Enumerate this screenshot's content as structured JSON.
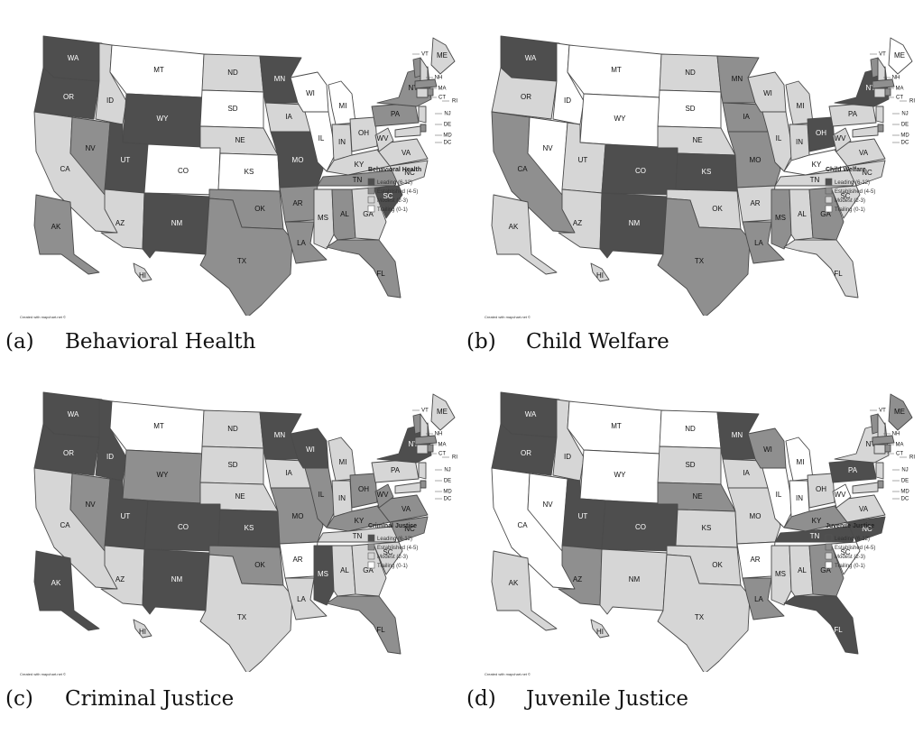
{
  "colors": {
    "leading": "#4e4e4e",
    "established": "#8f8f8f",
    "modest": "#d6d6d6",
    "trailing": "#ffffff"
  },
  "legend_categories": [
    {
      "key": "leading",
      "label": "Leading (6-12)"
    },
    {
      "key": "established",
      "label": "Established (4-5)"
    },
    {
      "key": "modest",
      "label": "Modest (2-3)"
    },
    {
      "key": "trailing",
      "label": "Trailing (0-1)"
    }
  ],
  "credit": "Created with mapchart.net ©",
  "panels": [
    {
      "caption_label": "(a)",
      "caption_title": "Behavioral Health",
      "legend_title": "Behavioral Health",
      "states": {
        "WA": "leading",
        "OR": "leading",
        "CA": "modest",
        "NV": "established",
        "ID": "modest",
        "MT": "trailing",
        "WY": "leading",
        "UT": "leading",
        "AZ": "modest",
        "CO": "trailing",
        "NM": "leading",
        "ND": "modest",
        "SD": "trailing",
        "NE": "modest",
        "KS": "trailing",
        "OK": "established",
        "TX": "established",
        "MN": "leading",
        "IA": "modest",
        "MO": "leading",
        "AR": "established",
        "LA": "established",
        "WI": "trailing",
        "IL": "trailing",
        "MI": "trailing",
        "IN": "modest",
        "OH": "modest",
        "KY": "modest",
        "TN": "established",
        "MS": "modest",
        "AL": "established",
        "GA": "modest",
        "FL": "established",
        "SC": "leading",
        "NC": "modest",
        "VA": "modest",
        "WV": "modest",
        "PA": "established",
        "NY": "established",
        "ME": "modest",
        "AK": "established",
        "HI": "modest"
      }
    },
    {
      "caption_label": "(b)",
      "caption_title": "Child Welfare",
      "legend_title": "Child Welfare",
      "states": {
        "WA": "leading",
        "OR": "modest",
        "CA": "established",
        "NV": "trailing",
        "ID": "trailing",
        "MT": "trailing",
        "WY": "trailing",
        "UT": "modest",
        "AZ": "modest",
        "CO": "leading",
        "NM": "leading",
        "ND": "modest",
        "SD": "trailing",
        "NE": "modest",
        "KS": "leading",
        "OK": "modest",
        "TX": "established",
        "MN": "established",
        "IA": "established",
        "MO": "established",
        "AR": "modest",
        "LA": "established",
        "WI": "modest",
        "IL": "modest",
        "MI": "modest",
        "IN": "modest",
        "OH": "leading",
        "KY": "trailing",
        "TN": "modest",
        "MS": "established",
        "AL": "modest",
        "GA": "established",
        "FL": "modest",
        "SC": "modest",
        "NC": "modest",
        "VA": "modest",
        "WV": "modest",
        "PA": "modest",
        "NY": "leading",
        "ME": "trailing",
        "AK": "modest",
        "HI": "modest"
      }
    },
    {
      "caption_label": "(c)",
      "caption_title": "Criminal Justice",
      "legend_title": "Criminal Justice",
      "states": {
        "WA": "leading",
        "OR": "leading",
        "CA": "modest",
        "NV": "established",
        "ID": "leading",
        "MT": "trailing",
        "WY": "established",
        "UT": "leading",
        "AZ": "modest",
        "CO": "leading",
        "NM": "leading",
        "ND": "modest",
        "SD": "modest",
        "NE": "modest",
        "KS": "leading",
        "OK": "established",
        "TX": "modest",
        "MN": "leading",
        "IA": "modest",
        "MO": "established",
        "AR": "trailing",
        "LA": "modest",
        "WI": "leading",
        "IL": "established",
        "MI": "modest",
        "IN": "modest",
        "OH": "established",
        "KY": "established",
        "TN": "modest",
        "MS": "leading",
        "AL": "modest",
        "GA": "modest",
        "FL": "established",
        "SC": "modest",
        "NC": "established",
        "VA": "established",
        "WV": "established",
        "PA": "modest",
        "NY": "leading",
        "ME": "modest",
        "AK": "leading",
        "HI": "modest"
      }
    },
    {
      "caption_label": "(d)",
      "caption_title": "Juvenile Justice",
      "legend_title": "Juvenile Justice",
      "states": {
        "WA": "leading",
        "OR": "leading",
        "CA": "trailing",
        "NV": "trailing",
        "ID": "modest",
        "MT": "trailing",
        "WY": "trailing",
        "UT": "leading",
        "AZ": "established",
        "CO": "leading",
        "NM": "modest",
        "ND": "trailing",
        "SD": "modest",
        "NE": "established",
        "KS": "modest",
        "OK": "modest",
        "TX": "modest",
        "MN": "leading",
        "IA": "modest",
        "MO": "modest",
        "AR": "trailing",
        "LA": "established",
        "WI": "established",
        "IL": "trailing",
        "MI": "trailing",
        "IN": "trailing",
        "OH": "modest",
        "KY": "established",
        "TN": "leading",
        "MS": "modest",
        "AL": "modest",
        "GA": "established",
        "FL": "leading",
        "SC": "trailing",
        "NC": "leading",
        "VA": "modest",
        "WV": "trailing",
        "PA": "leading",
        "NY": "modest",
        "ME": "established",
        "AK": "modest",
        "HI": "modest"
      }
    }
  ]
}
